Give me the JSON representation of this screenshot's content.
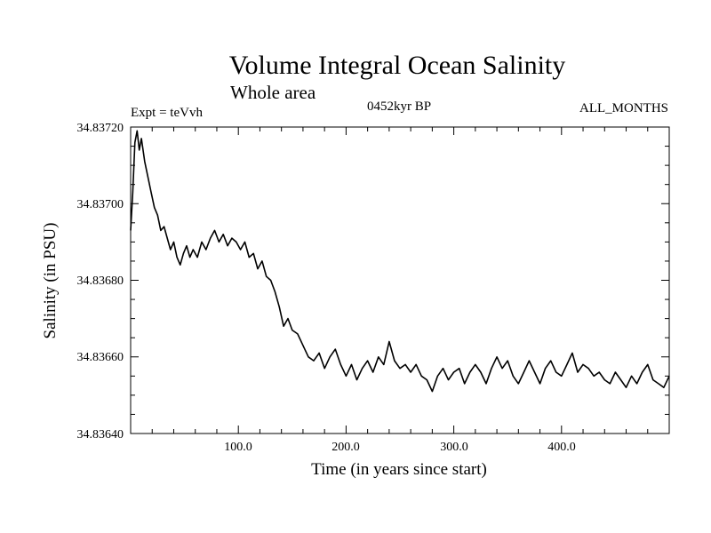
{
  "chart_data": {
    "type": "line",
    "title": "Volume Integral Ocean Salinity",
    "subtitle": "Whole area",
    "experiment": "Expt = teVvh",
    "period": "0452kyr BP",
    "months": "ALL_MONTHS",
    "xlabel": "Time (in years since start)",
    "ylabel": "Salinity (in PSU)",
    "xlim": [
      0,
      500
    ],
    "ylim": [
      34.8364,
      34.8372
    ],
    "xticks": [
      100,
      200,
      300,
      400
    ],
    "xtick_labels": [
      "100.0",
      "200.0",
      "300.0",
      "400.0"
    ],
    "yticks": [
      34.8364,
      34.8366,
      34.8368,
      34.837,
      34.8372
    ],
    "ytick_labels": [
      "34.83640",
      "34.83660",
      "34.83680",
      "34.83700",
      "34.83720"
    ],
    "series": [
      {
        "color": "#000000",
        "x": [
          0,
          2,
          4,
          6,
          8,
          10,
          13,
          16,
          19,
          22,
          25,
          28,
          31,
          34,
          37,
          40,
          43,
          46,
          49,
          52,
          55,
          58,
          62,
          66,
          70,
          74,
          78,
          82,
          86,
          90,
          94,
          98,
          102,
          106,
          110,
          114,
          118,
          122,
          126,
          130,
          134,
          138,
          142,
          146,
          150,
          155,
          160,
          165,
          170,
          175,
          180,
          185,
          190,
          195,
          200,
          205,
          210,
          215,
          220,
          225,
          230,
          235,
          240,
          245,
          250,
          255,
          260,
          265,
          270,
          275,
          280,
          285,
          290,
          295,
          300,
          305,
          310,
          315,
          320,
          325,
          330,
          335,
          340,
          345,
          350,
          355,
          360,
          365,
          370,
          375,
          380,
          385,
          390,
          395,
          400,
          405,
          410,
          415,
          420,
          425,
          430,
          435,
          440,
          445,
          450,
          455,
          460,
          465,
          470,
          475,
          480,
          485,
          490,
          495,
          500
        ],
        "y": [
          34.83693,
          34.83703,
          34.83716,
          34.83719,
          34.83714,
          34.83717,
          34.83711,
          34.83707,
          34.83703,
          34.83699,
          34.83697,
          34.83693,
          34.83694,
          34.83691,
          34.83688,
          34.8369,
          34.83686,
          34.83684,
          34.83687,
          34.83689,
          34.83686,
          34.83688,
          34.83686,
          34.8369,
          34.83688,
          34.83691,
          34.83693,
          34.8369,
          34.83692,
          34.83689,
          34.83691,
          34.8369,
          34.83688,
          34.8369,
          34.83686,
          34.83687,
          34.83683,
          34.83685,
          34.83681,
          34.8368,
          34.83677,
          34.83673,
          34.83668,
          34.8367,
          34.83667,
          34.83666,
          34.83663,
          34.8366,
          34.83659,
          34.83661,
          34.83657,
          34.8366,
          34.83662,
          34.83658,
          34.83655,
          34.83658,
          34.83654,
          34.83657,
          34.83659,
          34.83656,
          34.8366,
          34.83658,
          34.83664,
          34.83659,
          34.83657,
          34.83658,
          34.83656,
          34.83658,
          34.83655,
          34.83654,
          34.83651,
          34.83655,
          34.83657,
          34.83654,
          34.83656,
          34.83657,
          34.83653,
          34.83656,
          34.83658,
          34.83656,
          34.83653,
          34.83657,
          34.8366,
          34.83657,
          34.83659,
          34.83655,
          34.83653,
          34.83656,
          34.83659,
          34.83656,
          34.83653,
          34.83657,
          34.83659,
          34.83656,
          34.83655,
          34.83658,
          34.83661,
          34.83656,
          34.83658,
          34.83657,
          34.83655,
          34.83656,
          34.83654,
          34.83653,
          34.83656,
          34.83654,
          34.83652,
          34.83655,
          34.83653,
          34.83656,
          34.83658,
          34.83654,
          34.83653,
          34.83652,
          34.83655
        ]
      }
    ],
    "grid": false,
    "legend": "none"
  }
}
